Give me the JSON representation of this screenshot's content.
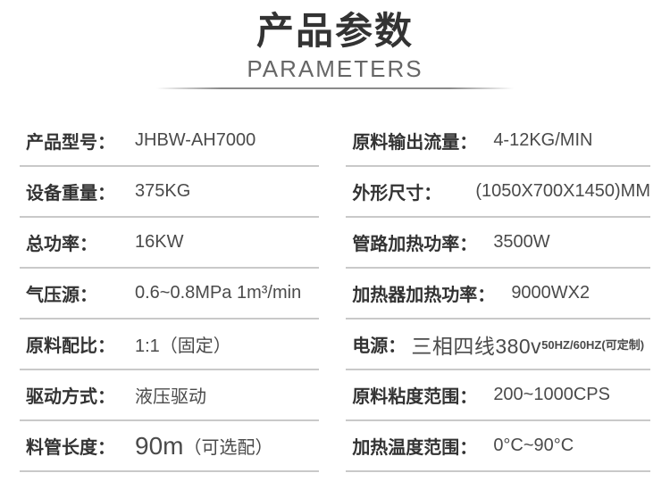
{
  "header": {
    "title": "产品参数",
    "subtitle": "PARAMETERS"
  },
  "params": {
    "left": [
      {
        "label": "产品型号：",
        "value": "JHBW-AH7000"
      },
      {
        "label": "设备重量：",
        "value": "375KG"
      },
      {
        "label": "总功率：",
        "value": "16KW"
      },
      {
        "label": "气压源：",
        "value": "0.6~0.8MPa 1m³/min"
      },
      {
        "label": "原料配比：",
        "value": "1:1（固定）"
      },
      {
        "label": "驱动方式：",
        "value": "液压驱动"
      },
      {
        "label": "料管长度：",
        "value_big": "90m",
        "value": "（可选配）"
      }
    ],
    "right": [
      {
        "label": "原料输出流量：",
        "value": "4-12KG/MIN"
      },
      {
        "label": "外形尺寸：",
        "value": "(1050X700X1450)MM"
      },
      {
        "label": "管路加热功率：",
        "value": "3500W"
      },
      {
        "label": "加热器加热功率：",
        "value": "9000WX2"
      },
      {
        "label": "电源：",
        "value_big": "三相四线380v",
        "value_small": "50HZ/60HZ(可定制)"
      },
      {
        "label": "原料粘度范围：",
        "value": "200~1000CPS"
      },
      {
        "label": "加热温度范围：",
        "value": "0°C~90°C"
      }
    ]
  },
  "colors": {
    "title": "#333333",
    "subtitle": "#666666",
    "label": "#333333",
    "value": "#4a4a4a",
    "row_divider": "#c9c9c9",
    "header_divider": "#8a8a8a",
    "background": "#ffffff"
  }
}
